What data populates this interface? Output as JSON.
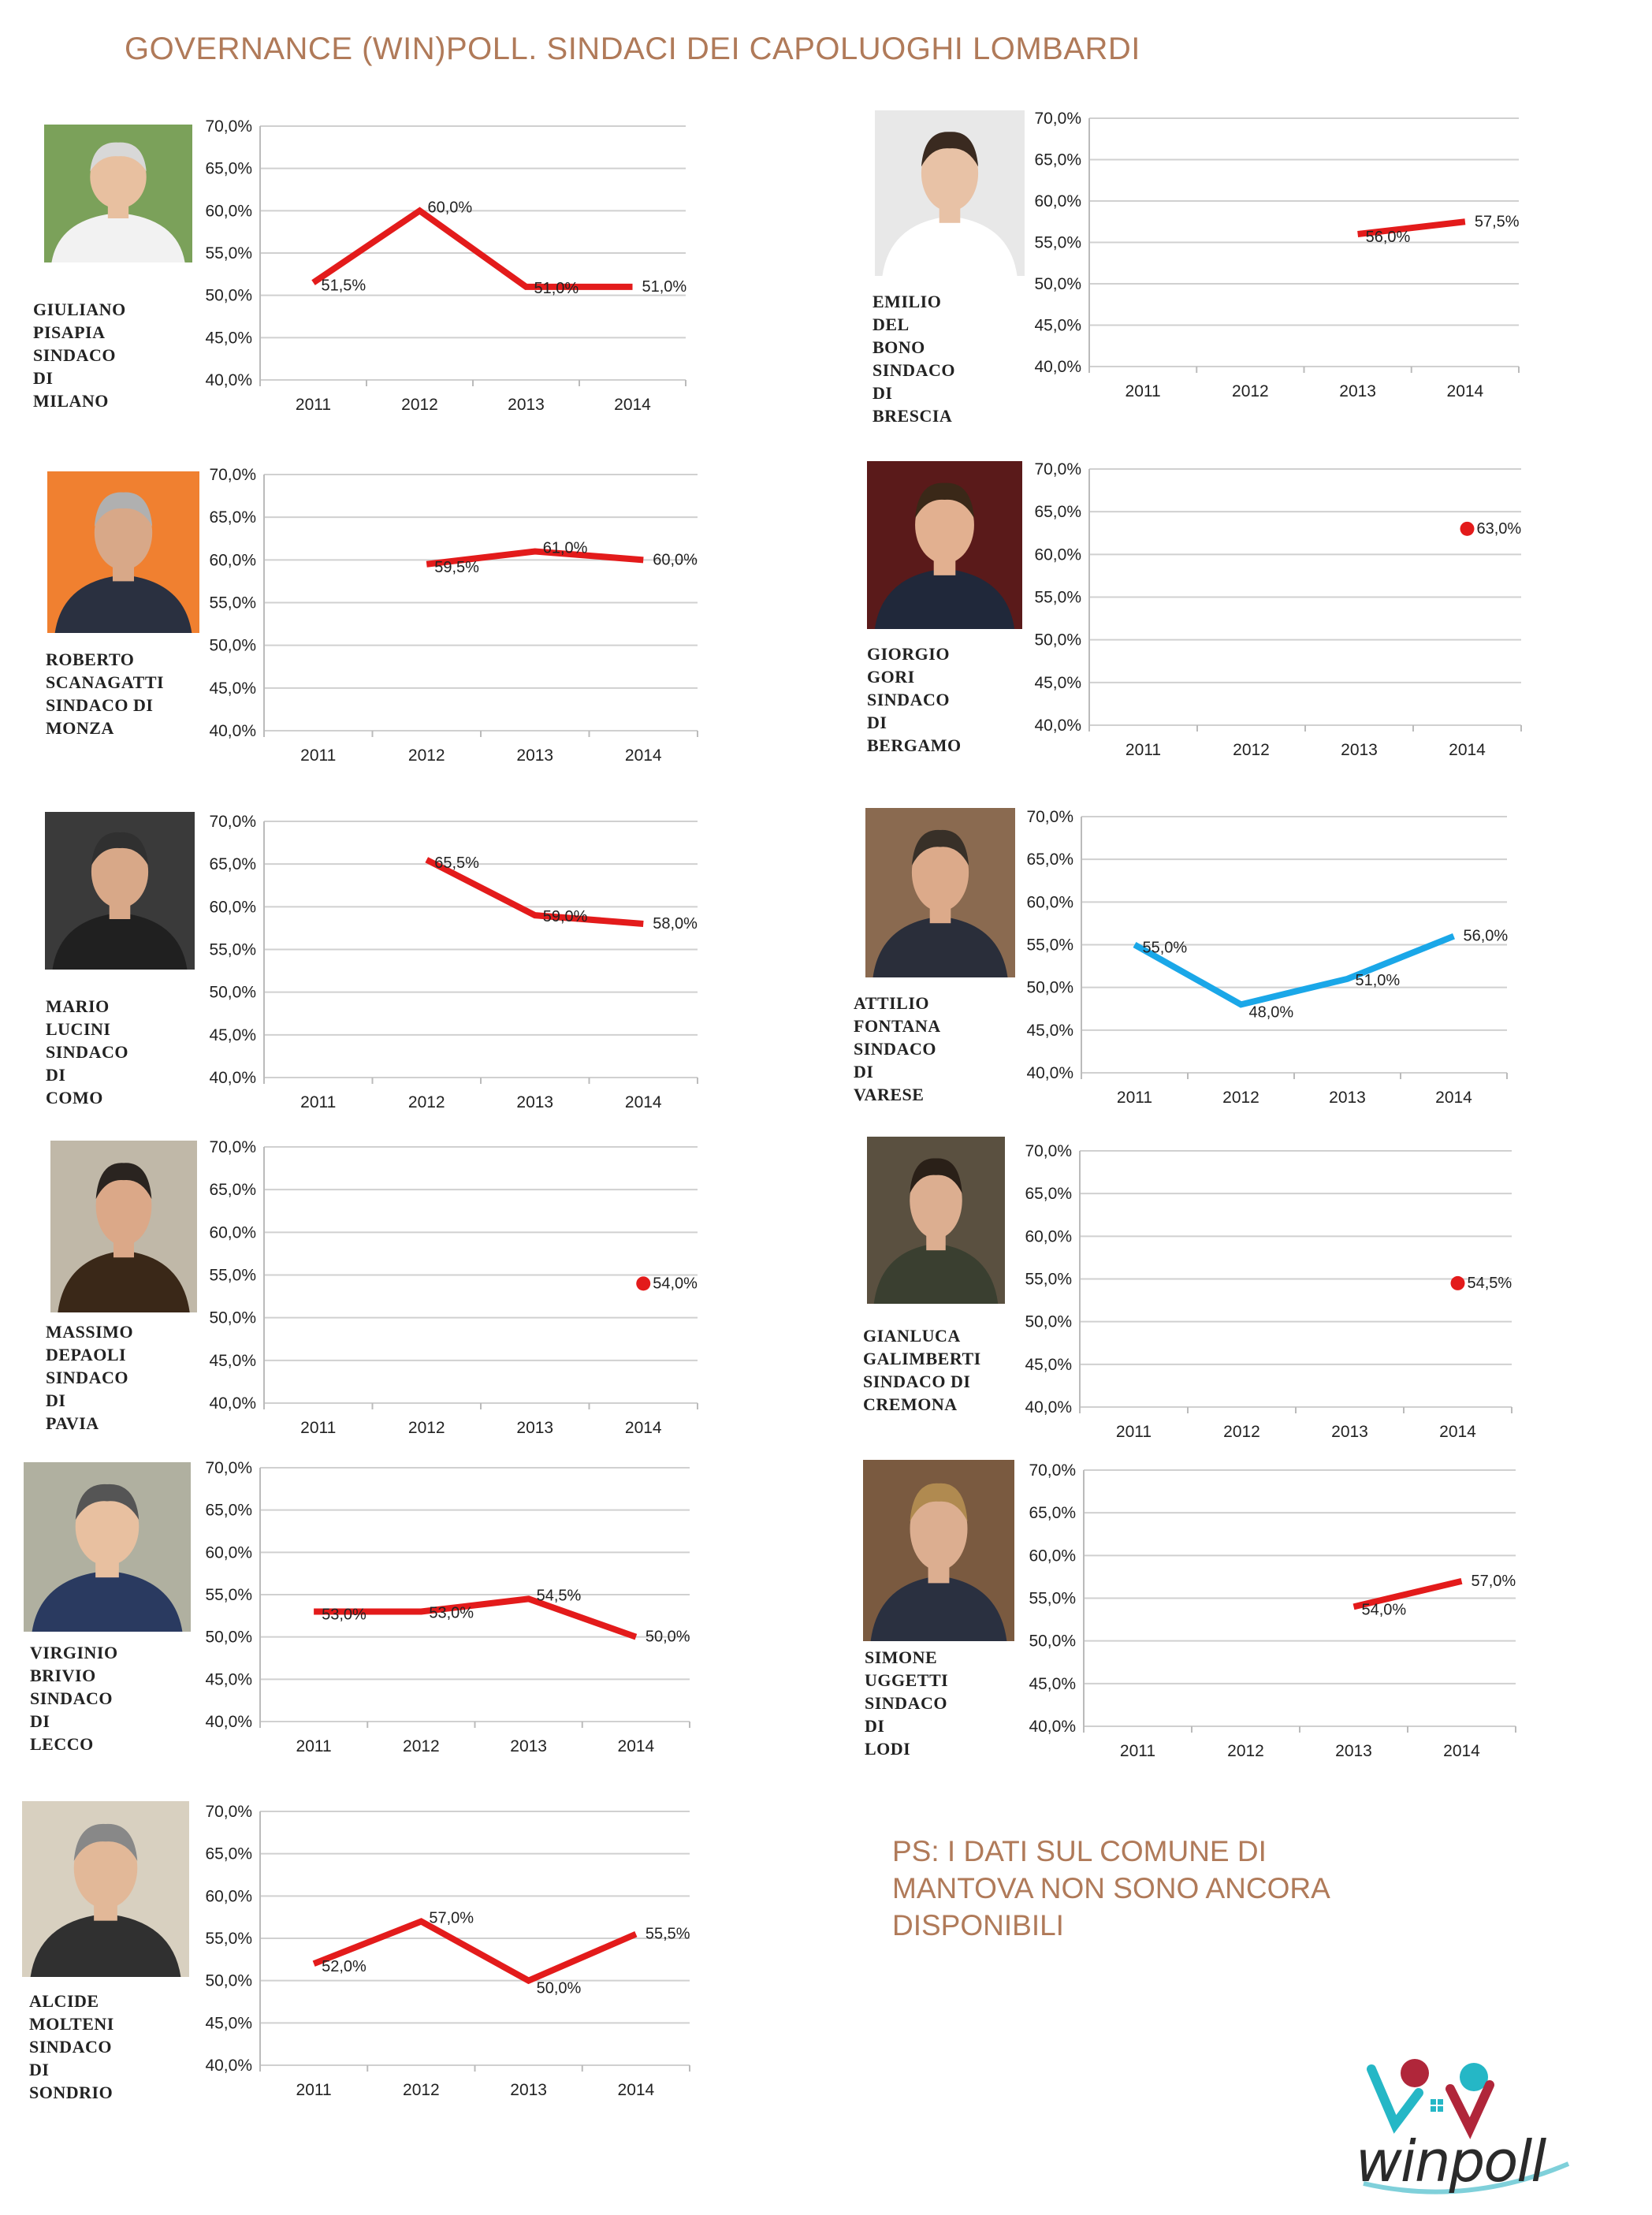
{
  "title": "GOVERNANCE (WIN)POLL. SINDACI DEI CAPOLUOGHI LOMBARDI",
  "note": "PS: I DATI SUL COMUNE DI MANTOVA NON SONO ANCORA DISPONIBILI",
  "logo_text": "winpoll",
  "colors": {
    "red": "#e31b1b",
    "blue": "#1aa7e8",
    "title": "#b07a59",
    "grid": "#d0d0d0"
  },
  "chart_data": [
    {
      "type": "line",
      "person": "GIULIANO\nPISAPIA\nSINDACO DI\nMILANO",
      "color": "red",
      "categories": [
        "2011",
        "2012",
        "2013",
        "2014"
      ],
      "y_ticks": [
        "70,0%",
        "65,0%",
        "60,0%",
        "55,0%",
        "50,0%",
        "45,0%",
        "40,0%"
      ],
      "ylim": [
        40,
        70
      ],
      "values": [
        51.5,
        60.0,
        51.0,
        51.0
      ],
      "labels": [
        "51,5%",
        "60,0%",
        "51,0%",
        "51,0%"
      ]
    },
    {
      "type": "line",
      "person": "EMILIO\nDEL BONO\nSINDACO DI\nBRESCIA",
      "color": "red",
      "categories": [
        "2011",
        "2012",
        "2013",
        "2014"
      ],
      "y_ticks": [
        "70,0%",
        "65,0%",
        "60,0%",
        "55,0%",
        "50,0%",
        "45,0%",
        "40,0%"
      ],
      "ylim": [
        40,
        70
      ],
      "values": [
        null,
        null,
        56.0,
        57.5
      ],
      "labels": [
        "",
        "",
        "56,0%",
        "57,5%"
      ]
    },
    {
      "type": "line",
      "person": "ROBERTO\nSCANAGATTI\nSINDACO DI\nMONZA",
      "color": "red",
      "categories": [
        "2011",
        "2012",
        "2013",
        "2014"
      ],
      "y_ticks": [
        "70,0%",
        "65,0%",
        "60,0%",
        "55,0%",
        "50,0%",
        "45,0%",
        "40,0%"
      ],
      "ylim": [
        40,
        70
      ],
      "values": [
        null,
        59.5,
        61.0,
        60.0
      ],
      "labels": [
        "",
        "59,5%",
        "61,0%",
        "60,0%"
      ]
    },
    {
      "type": "line",
      "person": "GIORGIO\nGORI\nSINDACO DI\nBERGAMO",
      "color": "red",
      "categories": [
        "2011",
        "2012",
        "2013",
        "2014"
      ],
      "y_ticks": [
        "70,0%",
        "65,0%",
        "60,0%",
        "55,0%",
        "50,0%",
        "45,0%",
        "40,0%"
      ],
      "ylim": [
        40,
        70
      ],
      "values": [
        null,
        null,
        null,
        63.0
      ],
      "labels": [
        "",
        "",
        "",
        "63,0%"
      ]
    },
    {
      "type": "line",
      "person": "MARIO\nLUCINI\nSINDACO DI\nCOMO",
      "color": "red",
      "categories": [
        "2011",
        "2012",
        "2013",
        "2014"
      ],
      "y_ticks": [
        "70,0%",
        "65,0%",
        "60,0%",
        "55,0%",
        "50,0%",
        "45,0%",
        "40,0%"
      ],
      "ylim": [
        40,
        70
      ],
      "values": [
        null,
        65.5,
        59.0,
        58.0
      ],
      "labels": [
        "",
        "65,5%",
        "59,0%",
        "58,0%"
      ]
    },
    {
      "type": "line",
      "person": "ATTILIO\nFONTANA\nSINDACO DI\nVARESE",
      "color": "blue",
      "categories": [
        "2011",
        "2012",
        "2013",
        "2014"
      ],
      "y_ticks": [
        "70,0%",
        "65,0%",
        "60,0%",
        "55,0%",
        "50,0%",
        "45,0%",
        "40,0%"
      ],
      "ylim": [
        40,
        70
      ],
      "values": [
        55.0,
        48.0,
        51.0,
        56.0
      ],
      "labels": [
        "55,0%",
        "48,0%",
        "51,0%",
        "56,0%"
      ]
    },
    {
      "type": "line",
      "person": "MASSIMO\nDEPAOLI\nSINDACO DI\nPAVIA",
      "color": "red",
      "categories": [
        "2011",
        "2012",
        "2013",
        "2014"
      ],
      "y_ticks": [
        "70,0%",
        "65,0%",
        "60,0%",
        "55,0%",
        "50,0%",
        "45,0%",
        "40,0%"
      ],
      "ylim": [
        40,
        70
      ],
      "values": [
        null,
        null,
        null,
        54.0
      ],
      "labels": [
        "",
        "",
        "",
        "54,0%"
      ]
    },
    {
      "type": "line",
      "person": "GIANLUCA\nGALIMBERTI\nSINDACO DI\nCREMONA",
      "color": "red",
      "categories": [
        "2011",
        "2012",
        "2013",
        "2014"
      ],
      "y_ticks": [
        "70,0%",
        "65,0%",
        "60,0%",
        "55,0%",
        "50,0%",
        "45,0%",
        "40,0%"
      ],
      "ylim": [
        40,
        70
      ],
      "values": [
        null,
        null,
        null,
        54.5
      ],
      "labels": [
        "",
        "",
        "",
        "54,5%"
      ]
    },
    {
      "type": "line",
      "person": "VIRGINIO\nBRIVIO\nSINDACO DI\nLECCO",
      "color": "red",
      "categories": [
        "2011",
        "2012",
        "2013",
        "2014"
      ],
      "y_ticks": [
        "70,0%",
        "65,0%",
        "60,0%",
        "55,0%",
        "50,0%",
        "45,0%",
        "40,0%"
      ],
      "ylim": [
        40,
        70
      ],
      "values": [
        53.0,
        53.0,
        54.5,
        50.0
      ],
      "labels": [
        "53,0%",
        "53,0%",
        "54,5%",
        "50,0%"
      ]
    },
    {
      "type": "line",
      "person": "SIMONE\nUGGETTI\nSINDACO DI\nLODI",
      "color": "red",
      "categories": [
        "2011",
        "2012",
        "2013",
        "2014"
      ],
      "y_ticks": [
        "70,0%",
        "65,0%",
        "60,0%",
        "55,0%",
        "50,0%",
        "45,0%",
        "40,0%"
      ],
      "ylim": [
        40,
        70
      ],
      "values": [
        null,
        null,
        54.0,
        57.0
      ],
      "labels": [
        "",
        "",
        "54,0%",
        "57,0%"
      ]
    },
    {
      "type": "line",
      "person": "ALCIDE\nMOLTENI\nSINDACO DI\nSONDRIO",
      "color": "red",
      "categories": [
        "2011",
        "2012",
        "2013",
        "2014"
      ],
      "y_ticks": [
        "70,0%",
        "65,0%",
        "60,0%",
        "55,0%",
        "50,0%",
        "45,0%",
        "40,0%"
      ],
      "ylim": [
        40,
        70
      ],
      "values": [
        52.0,
        57.0,
        50.0,
        55.5
      ],
      "labels": [
        "52,0%",
        "57,0%",
        "50,0%",
        "55,5%"
      ]
    }
  ]
}
